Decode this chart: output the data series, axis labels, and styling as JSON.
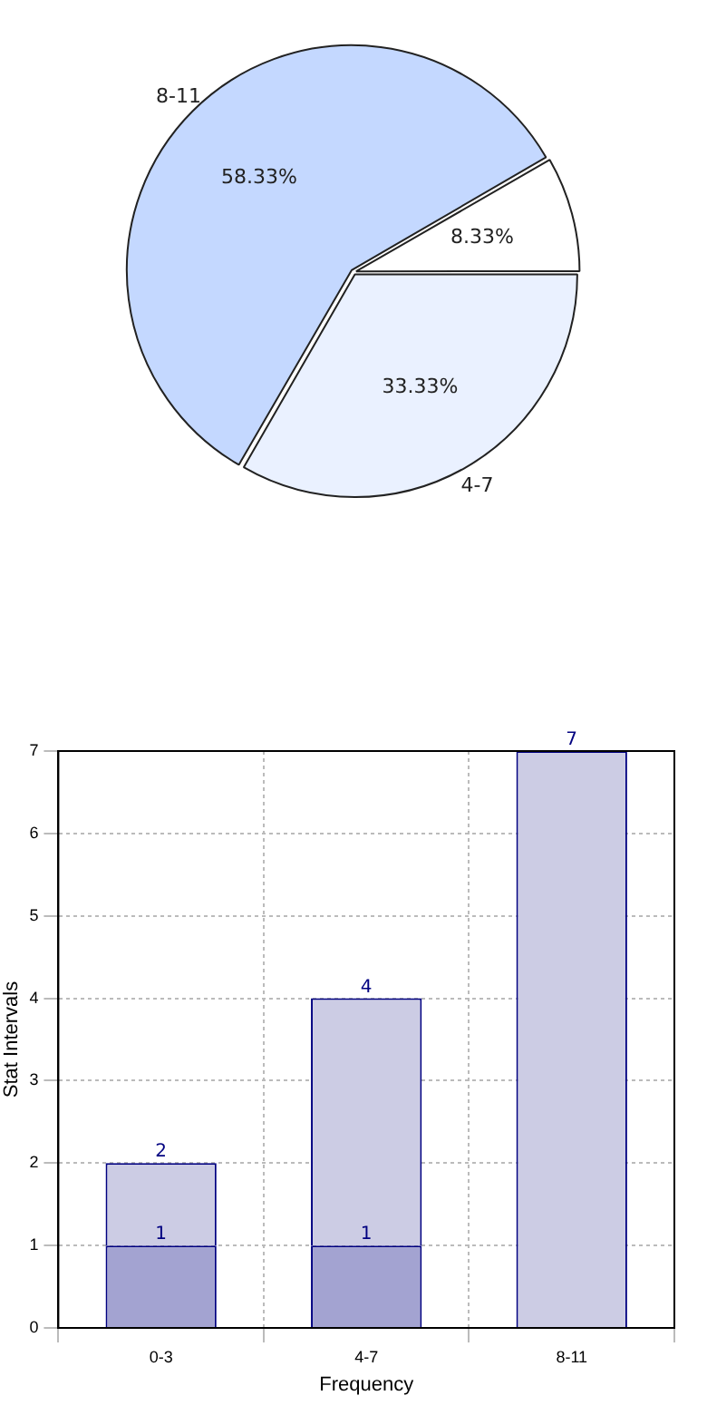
{
  "chart_data": [
    {
      "type": "pie",
      "categories": [
        null,
        "4-7",
        "8-11"
      ],
      "values": [
        8.33,
        33.33,
        58.33
      ],
      "colors": [
        "#ffffff",
        "#eaf1ff",
        "#c4d8ff"
      ],
      "value_labels": [
        "8.33%",
        "33.33%",
        "58.33%"
      ],
      "legend": false
    },
    {
      "type": "bar",
      "categories": [
        "0-3",
        "4-7",
        "8-11"
      ],
      "xlabel": "Frequency",
      "ylabel": "Stat Intervals",
      "ylim": [
        0,
        7
      ],
      "yticks": [
        0,
        1,
        2,
        3,
        4,
        5,
        6,
        7
      ],
      "grid": true,
      "legend": false,
      "stacked": true,
      "totals": [
        "2",
        "4",
        "7"
      ],
      "series": [
        {
          "color": "#a3a3d1",
          "values": [
            1,
            1,
            null
          ],
          "value_labels": [
            "1",
            "1",
            null
          ]
        },
        {
          "color": "#cccce4",
          "values": [
            1,
            3,
            7
          ]
        }
      ]
    }
  ]
}
